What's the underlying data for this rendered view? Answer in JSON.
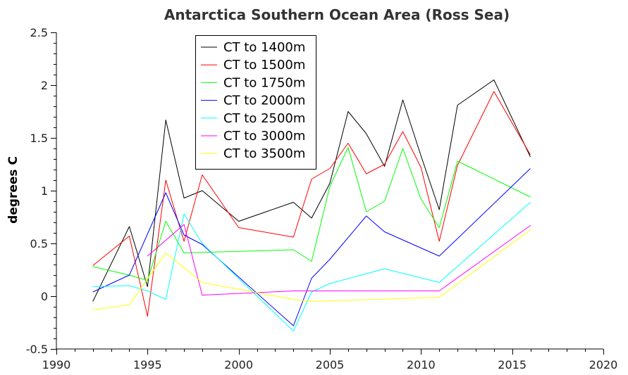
{
  "chart_data": {
    "type": "line",
    "title": "Antarctica Southern Ocean Area (Ross Sea)",
    "xlabel": "",
    "ylabel": "degrees C",
    "xlim": [
      1990,
      2020
    ],
    "ylim": [
      -0.5,
      2.5
    ],
    "x_ticks": [
      "1990",
      "1995",
      "2000",
      "2005",
      "2010",
      "2015",
      "2020"
    ],
    "y_ticks": [
      "-0.5",
      "0",
      "0.5",
      "1",
      "1.5",
      "2",
      "2.5"
    ],
    "legend_position": "top-left",
    "series": [
      {
        "name": "CT to 1400m",
        "color": "#000000",
        "x": [
          1992,
          1994,
          1995,
          1996,
          1997,
          1998,
          2000,
          2003,
          2004,
          2005,
          2006,
          2007,
          2008,
          2009,
          2010,
          2011,
          2012,
          2014,
          2016
        ],
        "y": [
          -0.05,
          0.66,
          0.09,
          1.67,
          0.93,
          1.0,
          0.71,
          0.89,
          0.74,
          1.07,
          1.75,
          1.54,
          1.23,
          1.86,
          1.33,
          0.82,
          1.81,
          2.05,
          1.32
        ]
      },
      {
        "name": "CT to 1500m",
        "color": "#ff0000",
        "x": [
          1992,
          1994,
          1995,
          1996,
          1997,
          1998,
          2000,
          2003,
          2004,
          2005,
          2006,
          2007,
          2008,
          2009,
          2010,
          2011,
          2012,
          2014,
          2016
        ],
        "y": [
          0.29,
          0.57,
          -0.19,
          1.1,
          0.52,
          1.15,
          0.65,
          0.56,
          1.11,
          1.21,
          1.45,
          1.16,
          1.25,
          1.56,
          1.22,
          0.52,
          1.24,
          1.94,
          1.34
        ]
      },
      {
        "name": "CT to 1750m",
        "color": "#00ff00",
        "x": [
          1992,
          1994,
          1995,
          1996,
          1997,
          2003,
          2004,
          2005,
          2006,
          2007,
          2008,
          2009,
          2010,
          2011,
          2012,
          2016
        ],
        "y": [
          0.28,
          0.2,
          0.15,
          0.71,
          0.41,
          0.44,
          0.33,
          1.04,
          1.41,
          0.8,
          0.9,
          1.4,
          0.92,
          0.65,
          1.28,
          0.94
        ]
      },
      {
        "name": "CT to 2000m",
        "color": "#0000ff",
        "x": [
          1992,
          1994,
          1996,
          1997,
          1998,
          2003,
          2004,
          2005,
          2007,
          2008,
          2011,
          2016
        ],
        "y": [
          0.04,
          0.2,
          0.98,
          0.58,
          0.49,
          -0.28,
          0.17,
          0.35,
          0.76,
          0.61,
          0.38,
          1.21
        ]
      },
      {
        "name": "CT to 2500m",
        "color": "#00ffff",
        "x": [
          1992,
          1994,
          1995,
          1996,
          1997,
          1998,
          2003,
          2004,
          2005,
          2008,
          2011,
          2016
        ],
        "y": [
          0.09,
          0.1,
          0.05,
          -0.03,
          0.78,
          0.5,
          -0.33,
          0.04,
          0.12,
          0.26,
          0.13,
          0.89
        ]
      },
      {
        "name": "CT to 3000m",
        "color": "#ff00ff",
        "x": [
          1995,
          1997,
          1998,
          2003,
          2011,
          2016
        ],
        "y": [
          0.38,
          0.68,
          0.01,
          0.05,
          0.05,
          0.67
        ]
      },
      {
        "name": "CT to 3500m",
        "color": "#ffff00",
        "x": [
          1992,
          1994,
          1996,
          1998,
          2003,
          2004,
          2011,
          2016
        ],
        "y": [
          -0.13,
          -0.08,
          0.41,
          0.13,
          -0.03,
          -0.05,
          -0.01,
          0.63
        ]
      }
    ]
  }
}
